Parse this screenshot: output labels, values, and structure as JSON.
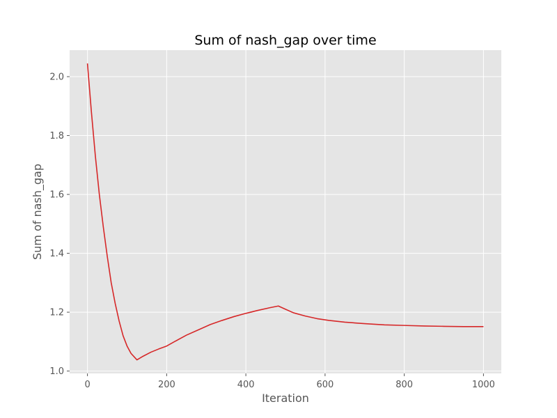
{
  "chart_data": {
    "type": "line",
    "title": "Sum of nash_gap over time",
    "xlabel": "Iteration",
    "ylabel": "Sum of nash_gap",
    "xlim": [
      -45,
      1045
    ],
    "ylim": [
      0.992,
      2.09
    ],
    "xticks": [
      0,
      200,
      400,
      600,
      800,
      1000
    ],
    "xtick_labels": [
      "0",
      "200",
      "400",
      "600",
      "800",
      "1000"
    ],
    "yticks": [
      1.0,
      1.2,
      1.4,
      1.6,
      1.8,
      2.0
    ],
    "ytick_labels": [
      "1.0",
      "1.2",
      "1.4",
      "1.6",
      "1.8",
      "2.0"
    ],
    "grid": true,
    "background": "#e5e5e5",
    "line_color": "#d62728",
    "series": [
      {
        "x": [
          0,
          10,
          20,
          30,
          40,
          50,
          60,
          70,
          80,
          90,
          100,
          110,
          125,
          140,
          160,
          180,
          200,
          220,
          250,
          280,
          310,
          340,
          370,
          400,
          430,
          460,
          482,
          500,
          520,
          550,
          580,
          610,
          650,
          700,
          750,
          800,
          850,
          900,
          950,
          1000
        ],
        "y": [
          2.045,
          1.88,
          1.73,
          1.6,
          1.49,
          1.39,
          1.3,
          1.23,
          1.17,
          1.12,
          1.085,
          1.06,
          1.038,
          1.05,
          1.064,
          1.075,
          1.085,
          1.1,
          1.122,
          1.14,
          1.158,
          1.172,
          1.185,
          1.196,
          1.206,
          1.215,
          1.221,
          1.21,
          1.198,
          1.187,
          1.178,
          1.172,
          1.166,
          1.161,
          1.157,
          1.155,
          1.153,
          1.152,
          1.151,
          1.151
        ]
      }
    ]
  }
}
